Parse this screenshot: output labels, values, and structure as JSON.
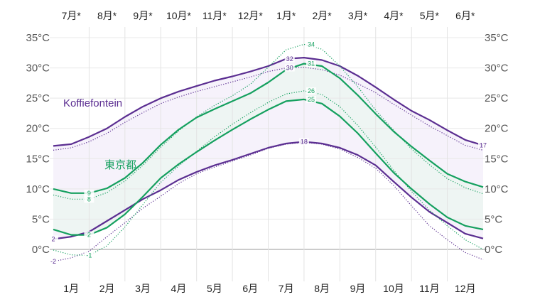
{
  "chart_data": {
    "type": "line",
    "title": "",
    "ylabel": "",
    "xlabel": "",
    "ylim": [
      -3,
      36
    ],
    "grid": true,
    "y_ticks": [
      "0°C",
      "5°C",
      "10°C",
      "15°C",
      "20°C",
      "25°C",
      "30°C",
      "35°C"
    ],
    "y_tick_values": [
      0,
      5,
      10,
      15,
      20,
      25,
      30,
      35
    ],
    "x_categories_bottom": [
      "1月",
      "2月",
      "3月",
      "4月",
      "5月",
      "6月",
      "7月",
      "8月",
      "9月",
      "10月",
      "11月",
      "12月"
    ],
    "x_categories_top": [
      "7月*",
      "8月*",
      "9月*",
      "10月*",
      "11月*",
      "12月*",
      "1月*",
      "2月*",
      "3月*",
      "4月*",
      "5月*",
      "6月*"
    ],
    "x_positions_months": [
      0,
      0.5,
      1,
      1.5,
      2,
      2.5,
      3,
      3.5,
      4,
      4.5,
      5,
      5.5,
      6,
      6.5,
      7,
      7.5,
      8,
      8.5,
      9,
      9.5,
      10,
      10.5,
      11,
      11.5,
      12
    ],
    "series": [
      {
        "name": "Koffiefontein",
        "label": "Koffiefontein",
        "color": "#5b2e91",
        "band_color": "#f5f1fb",
        "high": [
          17.1,
          17.4,
          18.6,
          20.0,
          21.9,
          23.6,
          25.0,
          26.1,
          27.0,
          27.9,
          28.6,
          29.4,
          30.3,
          31.5,
          31.7,
          31.3,
          30.3,
          28.7,
          26.8,
          24.8,
          22.9,
          21.4,
          19.7,
          18.1,
          17.2
        ],
        "low": [
          1.7,
          2.1,
          2.9,
          4.7,
          6.5,
          8.3,
          9.8,
          11.5,
          12.8,
          13.9,
          14.8,
          15.8,
          16.8,
          17.5,
          17.8,
          17.5,
          16.8,
          15.6,
          13.9,
          11.2,
          8.6,
          6.2,
          4.4,
          2.6,
          1.8
        ],
        "high_labels": [
          {
            "month": 6.6,
            "value": "32"
          },
          {
            "month": 12,
            "value": "17"
          }
        ],
        "low_labels": [
          {
            "month": 0,
            "value": "2"
          },
          {
            "month": 7,
            "value": "18"
          }
        ]
      },
      {
        "name": "Koffiefontein (dotted)",
        "color": "#5b2e91",
        "high": [
          16.4,
          16.8,
          17.8,
          19.2,
          21.0,
          22.6,
          24.1,
          25.2,
          26.1,
          26.9,
          27.7,
          28.5,
          29.4,
          30.0,
          30.1,
          29.7,
          28.8,
          27.4,
          25.9,
          24.0,
          22.2,
          20.4,
          18.8,
          17.2,
          16.4
        ],
        "low": [
          -2.0,
          -1.4,
          -0.3,
          2.1,
          4.4,
          6.8,
          8.8,
          10.9,
          12.5,
          13.6,
          14.6,
          15.6,
          16.7,
          17.4,
          17.7,
          17.4,
          16.6,
          15.2,
          13.4,
          10.6,
          7.2,
          3.9,
          1.6,
          -0.5,
          -1.7
        ],
        "high_labels": [
          {
            "month": 6.6,
            "value": "30"
          }
        ],
        "low_labels": [
          {
            "month": 0,
            "value": "-2"
          }
        ]
      },
      {
        "name": "東京都",
        "label": "東京都",
        "color": "#15a05f",
        "band_color": "#edf4f2",
        "high": [
          10.0,
          9.3,
          9.3,
          10.1,
          11.8,
          14.3,
          17.3,
          19.8,
          21.8,
          23.2,
          24.5,
          25.8,
          27.6,
          29.7,
          30.7,
          30.3,
          28.3,
          25.5,
          22.4,
          19.5,
          17.0,
          14.7,
          12.5,
          11.2,
          10.3
        ],
        "low": [
          3.3,
          2.4,
          2.4,
          3.6,
          5.8,
          8.7,
          11.8,
          14.1,
          16.1,
          18.0,
          19.8,
          21.5,
          23.1,
          24.5,
          24.8,
          24.1,
          22.0,
          19.2,
          15.9,
          12.7,
          10.0,
          7.5,
          5.3,
          3.9,
          3.3
        ],
        "high_labels": [
          {
            "month": 1,
            "value": "9"
          },
          {
            "month": 7.2,
            "value": "31"
          }
        ],
        "low_labels": [
          {
            "month": 1,
            "value": "2"
          },
          {
            "month": 7.2,
            "value": "25"
          }
        ]
      },
      {
        "name": "東京都 (dotted)",
        "color": "#15a05f",
        "high": [
          9.0,
          8.3,
          8.3,
          9.4,
          11.3,
          13.9,
          16.9,
          19.6,
          21.9,
          23.8,
          25.4,
          27.3,
          30.1,
          33.0,
          33.9,
          33.1,
          30.3,
          26.9,
          23.0,
          19.7,
          16.6,
          14.0,
          11.7,
          10.2,
          9.2
        ],
        "low": [
          -0.1,
          -0.9,
          -1.0,
          0.6,
          3.7,
          7.4,
          11.1,
          13.8,
          16.2,
          18.6,
          20.7,
          22.6,
          24.3,
          25.7,
          26.2,
          25.6,
          23.6,
          20.5,
          16.9,
          13.1,
          9.6,
          6.5,
          3.9,
          1.6,
          0.0
        ],
        "high_labels": [
          {
            "month": 1,
            "value": "8"
          },
          {
            "month": 7.2,
            "value": "34"
          }
        ],
        "low_labels": [
          {
            "month": 1,
            "value": "-1"
          },
          {
            "month": 7.2,
            "value": "26"
          }
        ]
      }
    ]
  }
}
